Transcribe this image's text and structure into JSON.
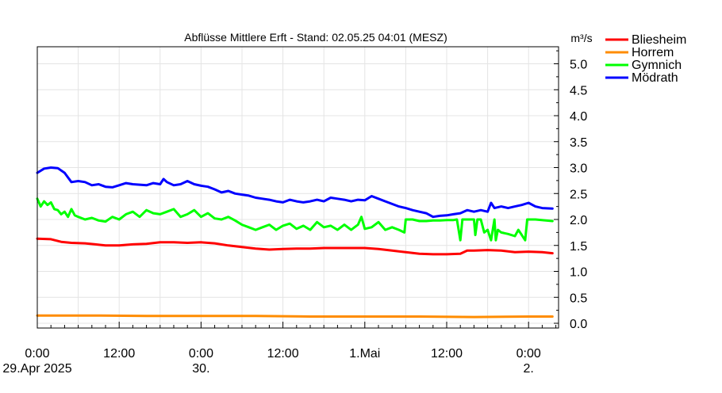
{
  "chart_data": {
    "type": "line",
    "title": "Abflüsse Mittlere Erft - Stand: 02.05.25 04:01 (MESZ)",
    "ylabel": "m³/s",
    "ylim": [
      0.0,
      5.3
    ],
    "yticks": [
      "0.0",
      "0.5",
      "1.0",
      "1.5",
      "2.0",
      "2.5",
      "3.0",
      "3.5",
      "4.0",
      "4.5",
      "5.0"
    ],
    "xticks": [
      {
        "h": 0,
        "line1": "0:00",
        "line2": "29.Apr 2025"
      },
      {
        "h": 12,
        "line1": "12:00",
        "line2": ""
      },
      {
        "h": 24,
        "line1": "0:00",
        "line2": "30."
      },
      {
        "h": 36,
        "line1": "12:00",
        "line2": ""
      },
      {
        "h": 48,
        "line1": "1.Mai",
        "line2": ""
      },
      {
        "h": 60,
        "line1": "12:00",
        "line2": ""
      },
      {
        "h": 72,
        "line1": "0:00",
        "line2": "2."
      }
    ],
    "x_unit": "hours since 29.Apr 2025 0:00",
    "xlim": [
      0,
      76.0
    ],
    "grid": true,
    "legend_position": "top-right",
    "series": [
      {
        "name": "Bliesheim",
        "color": "#ff0000",
        "points": [
          [
            0,
            1.63
          ],
          [
            2,
            1.62
          ],
          [
            3.5,
            1.57
          ],
          [
            5,
            1.55
          ],
          [
            7,
            1.54
          ],
          [
            8.5,
            1.52
          ],
          [
            10,
            1.5
          ],
          [
            12,
            1.5
          ],
          [
            14,
            1.52
          ],
          [
            16,
            1.53
          ],
          [
            18,
            1.56
          ],
          [
            20,
            1.56
          ],
          [
            22,
            1.55
          ],
          [
            24,
            1.56
          ],
          [
            26,
            1.54
          ],
          [
            28,
            1.5
          ],
          [
            30,
            1.47
          ],
          [
            32,
            1.44
          ],
          [
            34,
            1.42
          ],
          [
            36,
            1.43
          ],
          [
            38,
            1.44
          ],
          [
            40,
            1.44
          ],
          [
            42,
            1.45
          ],
          [
            44,
            1.45
          ],
          [
            46,
            1.45
          ],
          [
            48,
            1.45
          ],
          [
            50,
            1.43
          ],
          [
            52,
            1.4
          ],
          [
            54,
            1.37
          ],
          [
            56,
            1.34
          ],
          [
            58,
            1.33
          ],
          [
            60,
            1.33
          ],
          [
            62,
            1.34
          ],
          [
            63,
            1.4
          ],
          [
            64,
            1.4
          ],
          [
            66,
            1.41
          ],
          [
            68,
            1.4
          ],
          [
            70,
            1.37
          ],
          [
            72,
            1.38
          ],
          [
            74,
            1.37
          ],
          [
            75.5,
            1.35
          ]
        ]
      },
      {
        "name": "Horrem",
        "color": "#ff8c00",
        "points": [
          [
            0,
            0.15
          ],
          [
            8,
            0.15
          ],
          [
            16,
            0.14
          ],
          [
            24,
            0.14
          ],
          [
            32,
            0.14
          ],
          [
            40,
            0.13
          ],
          [
            48,
            0.13
          ],
          [
            56,
            0.13
          ],
          [
            64,
            0.12
          ],
          [
            72,
            0.13
          ],
          [
            75.5,
            0.13
          ]
        ]
      },
      {
        "name": "Gymnich",
        "color": "#00ff00",
        "points": [
          [
            0,
            2.4
          ],
          [
            0.5,
            2.25
          ],
          [
            1,
            2.35
          ],
          [
            1.5,
            2.28
          ],
          [
            2,
            2.33
          ],
          [
            2.5,
            2.2
          ],
          [
            3,
            2.18
          ],
          [
            3.5,
            2.1
          ],
          [
            4,
            2.15
          ],
          [
            4.5,
            2.05
          ],
          [
            5,
            2.2
          ],
          [
            5.5,
            2.08
          ],
          [
            6,
            2.05
          ],
          [
            7,
            2.0
          ],
          [
            8,
            2.03
          ],
          [
            9,
            1.98
          ],
          [
            10,
            1.96
          ],
          [
            11,
            2.05
          ],
          [
            12,
            2.0
          ],
          [
            13,
            2.1
          ],
          [
            14,
            2.15
          ],
          [
            15,
            2.05
          ],
          [
            16,
            2.18
          ],
          [
            17,
            2.12
          ],
          [
            18,
            2.1
          ],
          [
            19,
            2.15
          ],
          [
            20,
            2.2
          ],
          [
            21,
            2.05
          ],
          [
            22,
            2.1
          ],
          [
            23,
            2.18
          ],
          [
            24,
            2.05
          ],
          [
            25,
            2.12
          ],
          [
            26,
            2.02
          ],
          [
            27,
            2.0
          ],
          [
            28,
            2.05
          ],
          [
            29,
            1.98
          ],
          [
            30,
            1.9
          ],
          [
            31,
            1.85
          ],
          [
            32,
            1.8
          ],
          [
            33,
            1.85
          ],
          [
            34,
            1.9
          ],
          [
            35,
            1.8
          ],
          [
            36,
            1.88
          ],
          [
            37,
            1.92
          ],
          [
            38,
            1.82
          ],
          [
            39,
            1.88
          ],
          [
            40,
            1.8
          ],
          [
            41,
            1.95
          ],
          [
            42,
            1.85
          ],
          [
            43,
            1.88
          ],
          [
            44,
            1.8
          ],
          [
            45,
            1.9
          ],
          [
            46,
            1.8
          ],
          [
            47,
            1.9
          ],
          [
            47.5,
            2.05
          ],
          [
            48,
            1.82
          ],
          [
            49,
            1.85
          ],
          [
            50,
            1.95
          ],
          [
            51,
            1.8
          ],
          [
            52,
            1.85
          ],
          [
            53,
            1.8
          ],
          [
            53.8,
            1.75
          ],
          [
            54,
            2.0
          ],
          [
            55,
            2.0
          ],
          [
            56,
            1.97
          ],
          [
            57,
            1.97
          ],
          [
            58,
            1.98
          ],
          [
            59,
            1.98
          ],
          [
            60,
            1.99
          ],
          [
            61,
            1.99
          ],
          [
            61.5,
            2.0
          ],
          [
            62,
            1.6
          ],
          [
            62.3,
            2.0
          ],
          [
            63,
            2.0
          ],
          [
            64,
            2.0
          ],
          [
            64.2,
            1.7
          ],
          [
            64.5,
            2.0
          ],
          [
            65,
            2.0
          ],
          [
            65.5,
            1.75
          ],
          [
            66,
            1.8
          ],
          [
            66.5,
            1.6
          ],
          [
            67,
            2.0
          ],
          [
            67.2,
            1.6
          ],
          [
            67.5,
            1.8
          ],
          [
            68,
            1.75
          ],
          [
            69,
            1.72
          ],
          [
            70,
            1.68
          ],
          [
            70.5,
            1.8
          ],
          [
            71,
            1.7
          ],
          [
            71.5,
            1.6
          ],
          [
            71.8,
            2.0
          ],
          [
            73,
            2.0
          ],
          [
            75.5,
            1.97
          ]
        ]
      },
      {
        "name": "Mödrath",
        "color": "#0000ff",
        "points": [
          [
            0,
            2.9
          ],
          [
            1,
            2.98
          ],
          [
            2,
            3.0
          ],
          [
            3,
            2.99
          ],
          [
            4,
            2.9
          ],
          [
            5,
            2.72
          ],
          [
            6,
            2.74
          ],
          [
            7,
            2.72
          ],
          [
            8,
            2.66
          ],
          [
            9,
            2.68
          ],
          [
            10,
            2.63
          ],
          [
            11,
            2.62
          ],
          [
            12,
            2.66
          ],
          [
            13,
            2.7
          ],
          [
            14,
            2.68
          ],
          [
            15,
            2.67
          ],
          [
            16,
            2.66
          ],
          [
            17,
            2.7
          ],
          [
            18,
            2.68
          ],
          [
            18.5,
            2.78
          ],
          [
            19,
            2.72
          ],
          [
            20,
            2.66
          ],
          [
            21,
            2.68
          ],
          [
            22,
            2.74
          ],
          [
            23,
            2.68
          ],
          [
            24,
            2.65
          ],
          [
            25,
            2.63
          ],
          [
            26,
            2.58
          ],
          [
            27,
            2.52
          ],
          [
            28,
            2.55
          ],
          [
            29,
            2.5
          ],
          [
            30,
            2.48
          ],
          [
            31,
            2.46
          ],
          [
            32,
            2.42
          ],
          [
            33,
            2.4
          ],
          [
            34,
            2.38
          ],
          [
            35,
            2.35
          ],
          [
            36,
            2.33
          ],
          [
            37,
            2.38
          ],
          [
            38,
            2.35
          ],
          [
            39,
            2.33
          ],
          [
            40,
            2.35
          ],
          [
            41,
            2.38
          ],
          [
            42,
            2.35
          ],
          [
            43,
            2.42
          ],
          [
            44,
            2.4
          ],
          [
            45,
            2.38
          ],
          [
            46,
            2.35
          ],
          [
            47,
            2.38
          ],
          [
            48,
            2.37
          ],
          [
            49,
            2.45
          ],
          [
            50,
            2.4
          ],
          [
            51,
            2.35
          ],
          [
            52,
            2.3
          ],
          [
            53,
            2.25
          ],
          [
            54,
            2.22
          ],
          [
            55,
            2.18
          ],
          [
            56,
            2.15
          ],
          [
            57,
            2.12
          ],
          [
            58,
            2.05
          ],
          [
            59,
            2.07
          ],
          [
            60,
            2.08
          ],
          [
            61,
            2.1
          ],
          [
            62,
            2.12
          ],
          [
            63,
            2.18
          ],
          [
            64,
            2.15
          ],
          [
            65,
            2.18
          ],
          [
            66,
            2.15
          ],
          [
            66.5,
            2.32
          ],
          [
            67,
            2.22
          ],
          [
            68,
            2.25
          ],
          [
            69,
            2.22
          ],
          [
            70,
            2.25
          ],
          [
            71,
            2.28
          ],
          [
            72,
            2.32
          ],
          [
            73,
            2.25
          ],
          [
            74,
            2.22
          ],
          [
            75.5,
            2.21
          ]
        ]
      }
    ]
  }
}
